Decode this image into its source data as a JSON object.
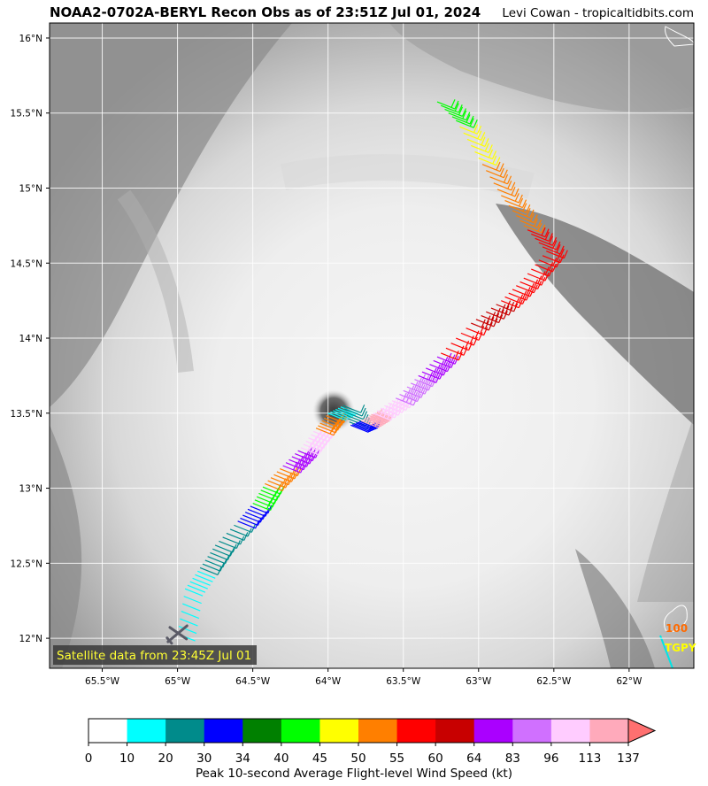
{
  "title": {
    "left": "NOAA2-0702A-BERYL Recon Obs as of 23:51Z Jul 01, 2024",
    "right": "Levi Cowan - tropicaltidbits.com"
  },
  "map": {
    "lon_ticks": [
      "65.5°W",
      "65°W",
      "64.5°W",
      "64°W",
      "63.5°W",
      "63°W",
      "62.5°W",
      "62°W"
    ],
    "lon_values": [
      -65.5,
      -65,
      -64.5,
      -64,
      -63.5,
      -63,
      -62.5,
      -62
    ],
    "lat_ticks": [
      "16°N",
      "15.5°N",
      "15°N",
      "14.5°N",
      "14°N",
      "13.5°N",
      "13°N",
      "12.5°N",
      "12°N"
    ],
    "lat_values": [
      16,
      15.5,
      15,
      14.5,
      14,
      13.5,
      13,
      12.5,
      12
    ],
    "extent": {
      "lon_min": -65.85,
      "lon_max": -61.57,
      "lat_min": 11.8,
      "lat_max": 16.1
    },
    "grid": true,
    "satellite_note": "Satellite data from 23:45Z Jul 01",
    "station_labels": [
      {
        "text": "100",
        "color": "#ff6a00"
      },
      {
        "text": "TGPY",
        "color": "#ffff00"
      }
    ],
    "track_wind_kt": [
      {
        "lon": -65.0,
        "lat": 12.03,
        "kt": 20,
        "label": "aircraft-icon"
      },
      {
        "lon": -64.95,
        "lat": 12.33,
        "kt": 10
      },
      {
        "lon": -64.85,
        "lat": 12.47,
        "kt": 10
      },
      {
        "lon": -64.75,
        "lat": 12.62,
        "kt": 20
      },
      {
        "lon": -64.6,
        "lat": 12.78,
        "kt": 20
      },
      {
        "lon": -64.5,
        "lat": 12.9,
        "kt": 30
      },
      {
        "lon": -64.42,
        "lat": 13.03,
        "kt": 40
      },
      {
        "lon": -64.3,
        "lat": 13.15,
        "kt": 50
      },
      {
        "lon": -64.18,
        "lat": 13.27,
        "kt": 64
      },
      {
        "lon": -64.08,
        "lat": 13.4,
        "kt": 96
      },
      {
        "lon": -64.0,
        "lat": 13.5,
        "kt": 50
      },
      {
        "lon": -63.9,
        "lat": 13.55,
        "kt": 10
      },
      {
        "lon": -63.85,
        "lat": 13.42,
        "kt": 20
      },
      {
        "lon": -63.78,
        "lat": 13.45,
        "kt": 30
      },
      {
        "lon": -63.7,
        "lat": 13.5,
        "kt": 113
      },
      {
        "lon": -63.55,
        "lat": 13.6,
        "kt": 96
      },
      {
        "lon": -63.4,
        "lat": 13.75,
        "kt": 83
      },
      {
        "lon": -63.25,
        "lat": 13.9,
        "kt": 64
      },
      {
        "lon": -63.05,
        "lat": 14.1,
        "kt": 55
      },
      {
        "lon": -62.85,
        "lat": 14.25,
        "kt": 60
      },
      {
        "lon": -62.7,
        "lat": 14.4,
        "kt": 55
      },
      {
        "lon": -62.55,
        "lat": 14.58,
        "kt": 55
      },
      {
        "lon": -62.7,
        "lat": 14.75,
        "kt": 55
      },
      {
        "lon": -62.85,
        "lat": 14.95,
        "kt": 50
      },
      {
        "lon": -63.0,
        "lat": 15.2,
        "kt": 50
      },
      {
        "lon": -63.15,
        "lat": 15.45,
        "kt": 45
      },
      {
        "lon": -63.3,
        "lat": 15.6,
        "kt": 40
      }
    ]
  },
  "colorbar": {
    "ticks": [
      "0",
      "10",
      "20",
      "30",
      "34",
      "40",
      "45",
      "50",
      "55",
      "60",
      "64",
      "83",
      "96",
      "113",
      "137"
    ],
    "colors": [
      "#ffffff",
      "#00ffff",
      "#008b8b",
      "#0000ff",
      "#008000",
      "#00ff00",
      "#ffff00",
      "#ff7f00",
      "#ff0000",
      "#c80000",
      "#aa00ff",
      "#d070ff",
      "#ffccff",
      "#ffaabb"
    ],
    "extend_color": "#ff7070",
    "label": "Peak 10-second Average Flight-level Wind Speed (kt)"
  }
}
